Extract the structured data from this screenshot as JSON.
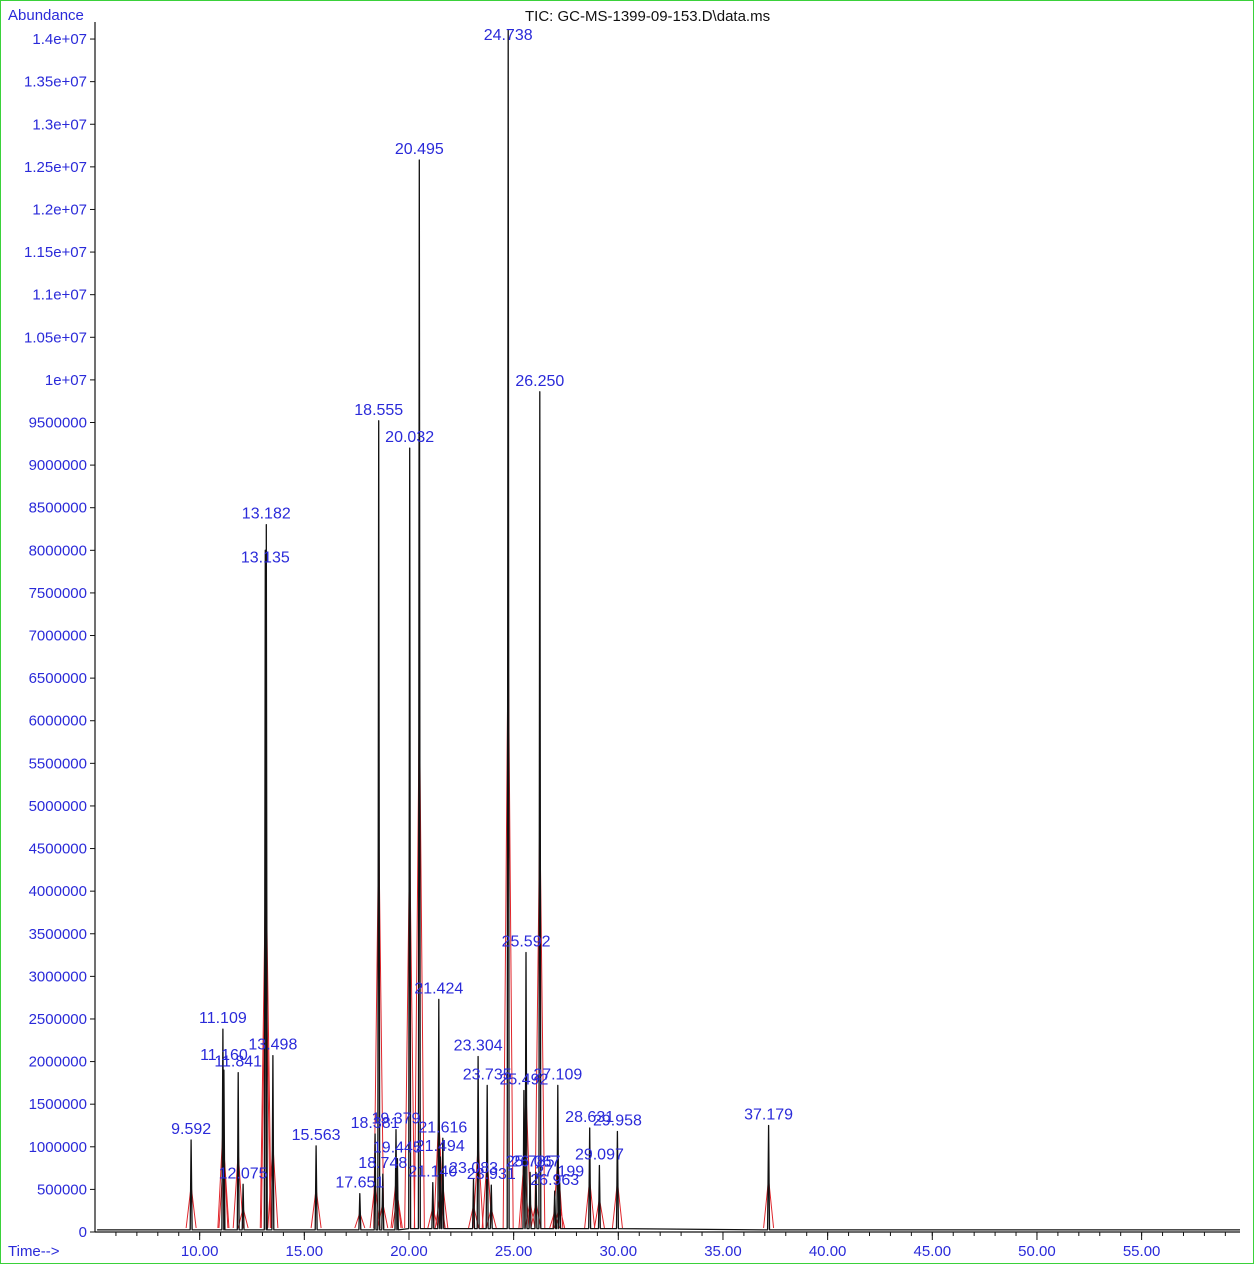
{
  "chart_data": {
    "type": "line",
    "title": "TIC: GC-MS-1399-09-153.D\\data.ms",
    "ylabel": "Abundance",
    "xlabel": "Time-->",
    "xlim": [
      5.0,
      59.7
    ],
    "ylim": [
      0,
      14200000
    ],
    "y_ticks": [
      {
        "v": 0,
        "label": "0"
      },
      {
        "v": 500000,
        "label": "500000"
      },
      {
        "v": 1000000,
        "label": "1000000"
      },
      {
        "v": 1500000,
        "label": "1500000"
      },
      {
        "v": 2000000,
        "label": "2000000"
      },
      {
        "v": 2500000,
        "label": "2500000"
      },
      {
        "v": 3000000,
        "label": "3000000"
      },
      {
        "v": 3500000,
        "label": "3500000"
      },
      {
        "v": 4000000,
        "label": "4000000"
      },
      {
        "v": 4500000,
        "label": "4500000"
      },
      {
        "v": 5000000,
        "label": "5000000"
      },
      {
        "v": 5500000,
        "label": "5500000"
      },
      {
        "v": 6000000,
        "label": "6000000"
      },
      {
        "v": 6500000,
        "label": "6500000"
      },
      {
        "v": 7000000,
        "label": "7000000"
      },
      {
        "v": 7500000,
        "label": "7500000"
      },
      {
        "v": 8000000,
        "label": "8000000"
      },
      {
        "v": 8500000,
        "label": "8500000"
      },
      {
        "v": 9000000,
        "label": "9000000"
      },
      {
        "v": 9500000,
        "label": "9500000"
      },
      {
        "v": 10000000,
        "label": "1e+07"
      },
      {
        "v": 10500000,
        "label": "1.05e+07"
      },
      {
        "v": 11000000,
        "label": "1.1e+07"
      },
      {
        "v": 11500000,
        "label": "1.15e+07"
      },
      {
        "v": 12000000,
        "label": "1.2e+07"
      },
      {
        "v": 12500000,
        "label": "1.25e+07"
      },
      {
        "v": 13000000,
        "label": "1.3e+07"
      },
      {
        "v": 13500000,
        "label": "1.35e+07"
      },
      {
        "v": 14000000,
        "label": "1.4e+07"
      }
    ],
    "x_ticks": [
      {
        "v": 10,
        "label": "10.00"
      },
      {
        "v": 15,
        "label": "15.00"
      },
      {
        "v": 20,
        "label": "20.00"
      },
      {
        "v": 25,
        "label": "25.00"
      },
      {
        "v": 30,
        "label": "30.00"
      },
      {
        "v": 35,
        "label": "35.00"
      },
      {
        "v": 40,
        "label": "40.00"
      },
      {
        "v": 45,
        "label": "45.00"
      },
      {
        "v": 50,
        "label": "50.00"
      },
      {
        "v": 55,
        "label": "55.00"
      }
    ],
    "peaks": [
      {
        "rt": 9.592,
        "label": "9.592",
        "height": 1080000
      },
      {
        "rt": 11.109,
        "label": "11.109",
        "height": 2380000
      },
      {
        "rt": 11.16,
        "label": "11.160",
        "height": 1900000
      },
      {
        "rt": 11.841,
        "label": "11.841",
        "height": 1870000
      },
      {
        "rt": 12.075,
        "label": "12.075",
        "height": 560000
      },
      {
        "rt": 13.135,
        "label": "13.135",
        "height": 8000000
      },
      {
        "rt": 13.182,
        "label": "13.182",
        "height": 8300000
      },
      {
        "rt": 13.498,
        "label": "13.498",
        "height": 2070000
      },
      {
        "rt": 15.563,
        "label": "15.563",
        "height": 1010000
      },
      {
        "rt": 17.651,
        "label": "17.651",
        "height": 450000
      },
      {
        "rt": 18.381,
        "label": "18.381",
        "height": 1150000
      },
      {
        "rt": 18.555,
        "label": "18.555",
        "height": 9520000
      },
      {
        "rt": 18.748,
        "label": "18.748",
        "height": 680000
      },
      {
        "rt": 19.379,
        "label": "19.379",
        "height": 1200000
      },
      {
        "rt": 19.445,
        "label": "19.445",
        "height": 860000
      },
      {
        "rt": 20.032,
        "label": "20.032",
        "height": 9200000
      },
      {
        "rt": 20.495,
        "label": "20.495",
        "height": 12580000
      },
      {
        "rt": 21.14,
        "label": "21.140",
        "height": 580000
      },
      {
        "rt": 21.424,
        "label": "21.424",
        "height": 2730000
      },
      {
        "rt": 21.494,
        "label": "21.494",
        "height": 880000
      },
      {
        "rt": 21.616,
        "label": "21.616",
        "height": 1100000
      },
      {
        "rt": 23.083,
        "label": "23.083",
        "height": 620000
      },
      {
        "rt": 23.304,
        "label": "23.304",
        "height": 2060000
      },
      {
        "rt": 23.735,
        "label": "23.735",
        "height": 1720000
      },
      {
        "rt": 23.931,
        "label": "23.931",
        "height": 550000
      },
      {
        "rt": 24.738,
        "label": "24.738",
        "height": 14100000
      },
      {
        "rt": 25.492,
        "label": "25.492",
        "height": 1660000
      },
      {
        "rt": 25.592,
        "label": "25.592",
        "height": 3280000
      },
      {
        "rt": 25.785,
        "label": "25.785",
        "height": 700000
      },
      {
        "rt": 26.067,
        "label": "26.067",
        "height": 700000
      },
      {
        "rt": 26.25,
        "label": "26.250",
        "height": 9860000
      },
      {
        "rt": 26.963,
        "label": "26.963",
        "height": 480000
      },
      {
        "rt": 27.109,
        "label": "27.109",
        "height": 1720000
      },
      {
        "rt": 27.199,
        "label": "27.199",
        "height": 580000
      },
      {
        "rt": 28.631,
        "label": "28.631",
        "height": 1220000
      },
      {
        "rt": 29.097,
        "label": "29.097",
        "height": 780000
      },
      {
        "rt": 29.958,
        "label": "29.958",
        "height": 1180000
      },
      {
        "rt": 37.179,
        "label": "37.179",
        "height": 1250000
      }
    ]
  }
}
